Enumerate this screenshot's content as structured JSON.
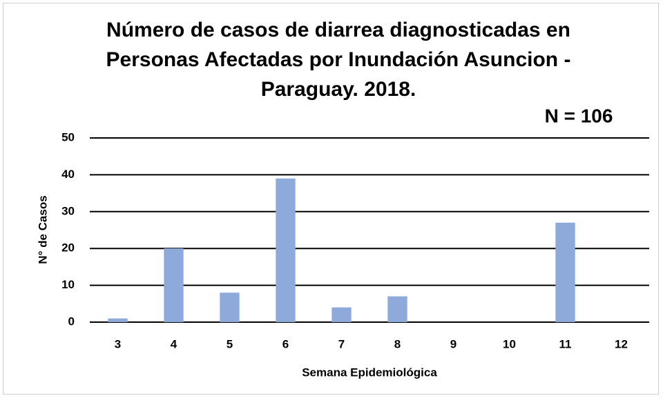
{
  "chart_data": {
    "type": "bar",
    "title": "Número de casos de diarrea diagnosticadas en Personas Afectadas por Inundación Asuncion - Paraguay.  2018.",
    "annotation": "N = 106",
    "x_label": "Semana Epidemiológica",
    "y_label": "N° de Casos",
    "categories": [
      "3",
      "4",
      "5",
      "6",
      "7",
      "8",
      "9",
      "10",
      "11",
      "12"
    ],
    "values": [
      1,
      20,
      8,
      39,
      4,
      7,
      0,
      0,
      27,
      0
    ],
    "color": "#8eaadb",
    "ylim": [
      0,
      50
    ],
    "yticks": [
      0,
      10,
      20,
      30,
      40,
      50
    ],
    "grid": true
  }
}
